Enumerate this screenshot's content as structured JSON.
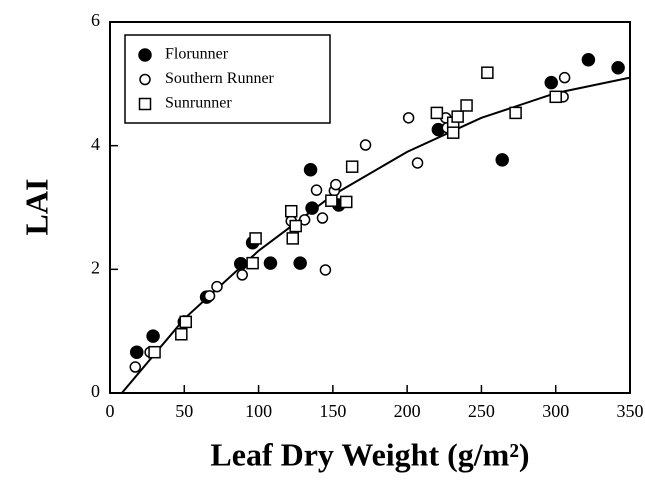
{
  "chart_data": {
    "type": "scatter",
    "xlabel": "Leaf Dry Weight (g/m²)",
    "ylabel": "LAI",
    "xlim": [
      0,
      350
    ],
    "xticks": [
      0,
      50,
      100,
      150,
      200,
      250,
      300,
      350
    ],
    "ylim": [
      0,
      6
    ],
    "yticks": [
      0,
      2,
      4,
      6
    ],
    "legend": "upper left",
    "series": [
      {
        "name": "Florunner",
        "color": "#000000",
        "marker": "filled-circle",
        "x": [
          18,
          29,
          50,
          65,
          88,
          96,
          108,
          128,
          136,
          135,
          154,
          221,
          297,
          322,
          342,
          264
        ],
        "values": [
          0.66,
          0.92,
          1.15,
          1.55,
          2.09,
          2.43,
          2.1,
          2.1,
          2.99,
          3.61,
          3.04,
          4.26,
          5.02,
          5.39,
          5.26,
          3.77
        ]
      },
      {
        "name": "Southern Runner",
        "color": "#000000",
        "marker": "open-circle",
        "x": [
          17,
          27,
          67,
          72,
          89,
          122,
          131,
          139,
          143,
          151,
          152,
          172,
          145,
          201,
          207,
          226,
          227,
          306,
          305
        ],
        "values": [
          0.42,
          0.66,
          1.57,
          1.72,
          1.91,
          2.78,
          2.8,
          3.28,
          2.83,
          3.27,
          3.37,
          4.01,
          1.99,
          4.45,
          3.72,
          4.45,
          4.29,
          5.1,
          4.79
        ]
      },
      {
        "name": "Sunrunner",
        "color": "#000000",
        "marker": "open-square",
        "x": [
          30,
          48,
          51,
          96,
          98,
          122,
          125,
          123,
          149,
          159,
          163,
          220,
          231,
          231,
          234,
          240,
          254,
          273,
          300
        ],
        "values": [
          0.66,
          0.95,
          1.15,
          2.1,
          2.5,
          2.94,
          2.7,
          2.5,
          3.11,
          3.09,
          3.66,
          4.53,
          4.37,
          4.21,
          4.47,
          4.65,
          5.18,
          4.53,
          4.79
        ]
      }
    ],
    "fit": {
      "color": "#000000",
      "x": [
        8,
        50,
        100,
        150,
        200,
        250,
        300,
        350
      ],
      "values": [
        0,
        1.2,
        2.3,
        3.2,
        3.9,
        4.45,
        4.85,
        5.1
      ]
    }
  }
}
